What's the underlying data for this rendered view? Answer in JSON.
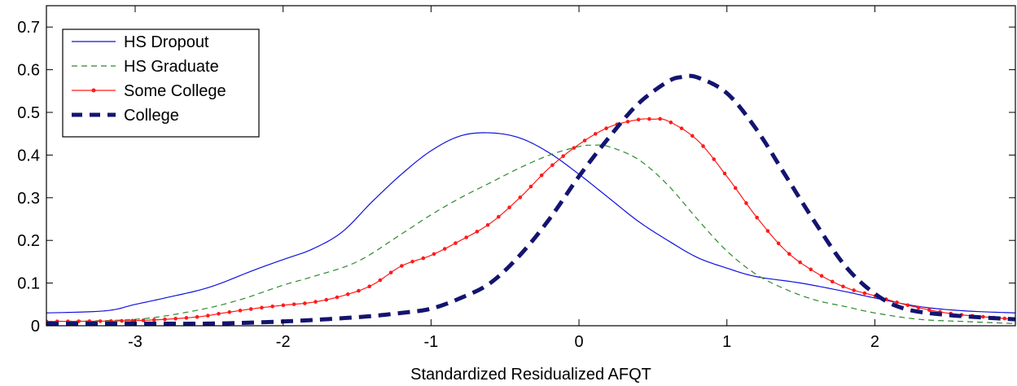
{
  "chart_data": {
    "type": "line",
    "title": "",
    "xlabel": "Standardized Residualized AFQT",
    "ylabel": "",
    "xlim": [
      -3.6,
      2.95
    ],
    "ylim": [
      0,
      0.75
    ],
    "xticks": [
      -3,
      -2,
      -1,
      0,
      1,
      2
    ],
    "yticks": [
      0,
      0.1,
      0.2,
      0.3,
      0.4,
      0.5,
      0.6,
      0.7
    ],
    "grid": false,
    "legend_position": "top-left",
    "series": [
      {
        "name": "HS Dropout",
        "color": "#1010e0",
        "style": "solid",
        "marker": "none",
        "x": [
          -3.6,
          -3.2,
          -3.0,
          -2.8,
          -2.5,
          -2.2,
          -2.0,
          -1.8,
          -1.6,
          -1.4,
          -1.2,
          -1.0,
          -0.8,
          -0.6,
          -0.4,
          -0.2,
          0.0,
          0.2,
          0.4,
          0.6,
          0.8,
          1.0,
          1.2,
          1.5,
          1.8,
          2.0,
          2.3,
          2.6,
          2.95
        ],
        "y": [
          0.03,
          0.035,
          0.05,
          0.065,
          0.09,
          0.13,
          0.155,
          0.18,
          0.22,
          0.29,
          0.355,
          0.41,
          0.445,
          0.452,
          0.44,
          0.405,
          0.355,
          0.3,
          0.245,
          0.2,
          0.16,
          0.135,
          0.115,
          0.1,
          0.08,
          0.065,
          0.045,
          0.035,
          0.03
        ]
      },
      {
        "name": "HS Graduate",
        "color": "#2a8a2a",
        "style": "dashed",
        "marker": "none",
        "x": [
          -3.6,
          -3.0,
          -2.6,
          -2.3,
          -2.0,
          -1.8,
          -1.5,
          -1.2,
          -1.0,
          -0.8,
          -0.6,
          -0.4,
          -0.2,
          0.0,
          0.1,
          0.2,
          0.4,
          0.6,
          0.8,
          1.0,
          1.2,
          1.4,
          1.6,
          1.8,
          2.0,
          2.3,
          2.6,
          2.95
        ],
        "y": [
          0.01,
          0.015,
          0.035,
          0.06,
          0.095,
          0.115,
          0.15,
          0.215,
          0.26,
          0.3,
          0.335,
          0.37,
          0.4,
          0.42,
          0.423,
          0.42,
          0.39,
          0.33,
          0.25,
          0.175,
          0.12,
          0.085,
          0.06,
          0.045,
          0.03,
          0.015,
          0.01,
          0.005
        ]
      },
      {
        "name": "Some College",
        "color": "#ff1a1a",
        "style": "solid",
        "marker": "dot",
        "x": [
          -3.6,
          -3.0,
          -2.6,
          -2.4,
          -2.2,
          -2.0,
          -1.8,
          -1.6,
          -1.4,
          -1.2,
          -1.0,
          -0.8,
          -0.6,
          -0.4,
          -0.2,
          0.0,
          0.2,
          0.4,
          0.5,
          0.6,
          0.8,
          1.0,
          1.2,
          1.4,
          1.6,
          1.8,
          2.0,
          2.2,
          2.4,
          2.6,
          2.95
        ],
        "y": [
          0.01,
          0.012,
          0.02,
          0.03,
          0.04,
          0.048,
          0.055,
          0.07,
          0.095,
          0.14,
          0.165,
          0.2,
          0.24,
          0.3,
          0.37,
          0.425,
          0.465,
          0.483,
          0.484,
          0.48,
          0.435,
          0.35,
          0.255,
          0.175,
          0.125,
          0.09,
          0.07,
          0.05,
          0.035,
          0.025,
          0.015
        ]
      },
      {
        "name": "College",
        "color": "#141470",
        "style": "thick-dashed",
        "marker": "none",
        "x": [
          -3.6,
          -3.0,
          -2.5,
          -2.0,
          -1.5,
          -1.2,
          -1.0,
          -0.8,
          -0.6,
          -0.4,
          -0.2,
          0.0,
          0.2,
          0.4,
          0.6,
          0.7,
          0.8,
          1.0,
          1.2,
          1.4,
          1.6,
          1.8,
          2.0,
          2.2,
          2.5,
          2.95
        ],
        "y": [
          0.005,
          0.005,
          0.005,
          0.01,
          0.02,
          0.03,
          0.04,
          0.065,
          0.1,
          0.165,
          0.25,
          0.35,
          0.44,
          0.52,
          0.572,
          0.583,
          0.582,
          0.545,
          0.46,
          0.35,
          0.24,
          0.14,
          0.075,
          0.04,
          0.025,
          0.015
        ]
      }
    ]
  }
}
